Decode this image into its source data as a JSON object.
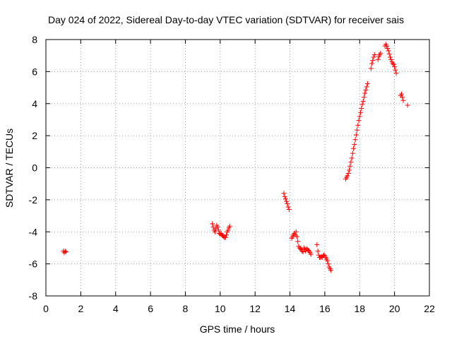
{
  "chart_data": {
    "type": "scatter",
    "title": "Day 024 of 2022, Sidereal Day-to-day VTEC variation (SDTVAR) for receiver sais",
    "xlabel": "GPS time / hours",
    "ylabel": "SDTVAR / TECUs",
    "xlim": [
      0,
      22
    ],
    "ylim": [
      -8,
      8
    ],
    "grid": true,
    "marker": "plus",
    "marker_color": "#ff0000",
    "x_ticks": [
      "0",
      "2",
      "4",
      "6",
      "8",
      "10",
      "12",
      "14",
      "16",
      "18",
      "20",
      "22"
    ],
    "y_ticks": [
      "-8",
      "-6",
      "-4",
      "-2",
      "0",
      "2",
      "4",
      "6",
      "8"
    ],
    "segments": [
      [
        [
          1.0,
          -5.2
        ],
        [
          1.05,
          -5.3
        ],
        [
          1.1,
          -5.2
        ],
        [
          1.15,
          -5.25
        ]
      ],
      [
        [
          9.55,
          -3.5
        ],
        [
          9.6,
          -3.7
        ],
        [
          9.65,
          -3.9
        ],
        [
          9.7,
          -4.0
        ],
        [
          9.75,
          -3.8
        ],
        [
          9.8,
          -3.6
        ],
        [
          9.85,
          -3.7
        ],
        [
          9.9,
          -3.9
        ],
        [
          9.95,
          -4.1
        ],
        [
          10.0,
          -4.15
        ],
        [
          10.05,
          -4.1
        ],
        [
          10.1,
          -4.2
        ],
        [
          10.15,
          -4.25
        ],
        [
          10.2,
          -4.3
        ],
        [
          10.25,
          -4.35
        ],
        [
          10.3,
          -4.35
        ],
        [
          10.35,
          -4.2
        ],
        [
          10.4,
          -4.0
        ],
        [
          10.45,
          -3.9
        ],
        [
          10.5,
          -3.75
        ],
        [
          10.55,
          -3.65
        ]
      ],
      [
        [
          13.65,
          -1.6
        ],
        [
          13.7,
          -1.8
        ],
        [
          13.75,
          -1.95
        ],
        [
          13.8,
          -2.1
        ],
        [
          13.85,
          -2.25
        ],
        [
          13.9,
          -2.45
        ],
        [
          13.95,
          -2.6
        ]
      ],
      [
        [
          14.1,
          -4.4
        ],
        [
          14.15,
          -4.3
        ],
        [
          14.2,
          -4.2
        ],
        [
          14.25,
          -4.1
        ],
        [
          14.3,
          -4.2
        ],
        [
          14.35,
          -4.0
        ],
        [
          14.4,
          -4.3
        ],
        [
          14.45,
          -4.6
        ],
        [
          14.5,
          -4.9
        ],
        [
          14.55,
          -5.0
        ],
        [
          14.6,
          -5.05
        ],
        [
          14.65,
          -5.1
        ],
        [
          14.7,
          -5.2
        ],
        [
          14.75,
          -5.25
        ],
        [
          14.8,
          -5.0
        ],
        [
          14.85,
          -5.1
        ],
        [
          14.9,
          -5.2
        ],
        [
          14.95,
          -5.05
        ],
        [
          15.0,
          -5.1
        ],
        [
          15.05,
          -5.15
        ],
        [
          15.1,
          -5.2
        ],
        [
          15.15,
          -5.3
        ],
        [
          15.2,
          -5.4
        ]
      ],
      [
        [
          15.55,
          -4.8
        ],
        [
          15.6,
          -5.2
        ],
        [
          15.65,
          -5.45
        ],
        [
          15.7,
          -5.6
        ],
        [
          15.75,
          -5.6
        ],
        [
          15.8,
          -5.55
        ],
        [
          15.85,
          -5.6
        ],
        [
          15.9,
          -5.5
        ],
        [
          15.95,
          -5.45
        ],
        [
          16.0,
          -5.5
        ],
        [
          16.05,
          -5.6
        ],
        [
          16.1,
          -5.7
        ],
        [
          16.15,
          -5.8
        ],
        [
          16.2,
          -6.0
        ],
        [
          16.25,
          -6.2
        ],
        [
          16.3,
          -6.3
        ],
        [
          16.35,
          -6.4
        ]
      ],
      [
        [
          17.2,
          -0.7
        ],
        [
          17.25,
          -0.6
        ],
        [
          17.3,
          -0.5
        ],
        [
          17.35,
          -0.35
        ],
        [
          17.4,
          -0.15
        ],
        [
          17.45,
          0.1
        ],
        [
          17.5,
          0.35
        ],
        [
          17.55,
          0.6
        ],
        [
          17.6,
          0.9
        ],
        [
          17.65,
          1.2
        ],
        [
          17.7,
          1.45
        ],
        [
          17.75,
          1.75
        ],
        [
          17.8,
          2.05
        ],
        [
          17.85,
          2.35
        ],
        [
          17.9,
          2.65
        ],
        [
          17.95,
          2.95
        ],
        [
          18.0,
          3.2
        ],
        [
          18.05,
          3.45
        ],
        [
          18.1,
          3.7
        ],
        [
          18.15,
          3.95
        ],
        [
          18.2,
          4.15
        ],
        [
          18.25,
          4.4
        ],
        [
          18.3,
          4.65
        ],
        [
          18.35,
          4.85
        ],
        [
          18.4,
          5.05
        ],
        [
          18.45,
          5.25
        ]
      ],
      [
        [
          18.65,
          6.2
        ],
        [
          18.7,
          6.5
        ],
        [
          18.75,
          6.7
        ],
        [
          18.8,
          6.9
        ],
        [
          18.85,
          7.05
        ]
      ],
      [
        [
          19.05,
          6.75
        ],
        [
          19.1,
          6.95
        ],
        [
          19.15,
          7.05
        ],
        [
          19.2,
          7.15
        ]
      ],
      [
        [
          19.45,
          7.6
        ],
        [
          19.5,
          7.7
        ],
        [
          19.55,
          7.6
        ],
        [
          19.6,
          7.45
        ],
        [
          19.65,
          7.3
        ],
        [
          19.7,
          7.1
        ],
        [
          19.75,
          6.9
        ],
        [
          19.8,
          6.75
        ],
        [
          19.85,
          6.6
        ],
        [
          19.9,
          6.5
        ],
        [
          19.95,
          6.45
        ],
        [
          20.0,
          6.3
        ],
        [
          20.05,
          6.1
        ],
        [
          20.1,
          5.9
        ]
      ],
      [
        [
          20.35,
          4.5
        ],
        [
          20.4,
          4.6
        ],
        [
          20.45,
          4.4
        ],
        [
          20.5,
          4.2
        ]
      ],
      [
        [
          20.75,
          3.9
        ]
      ]
    ]
  }
}
